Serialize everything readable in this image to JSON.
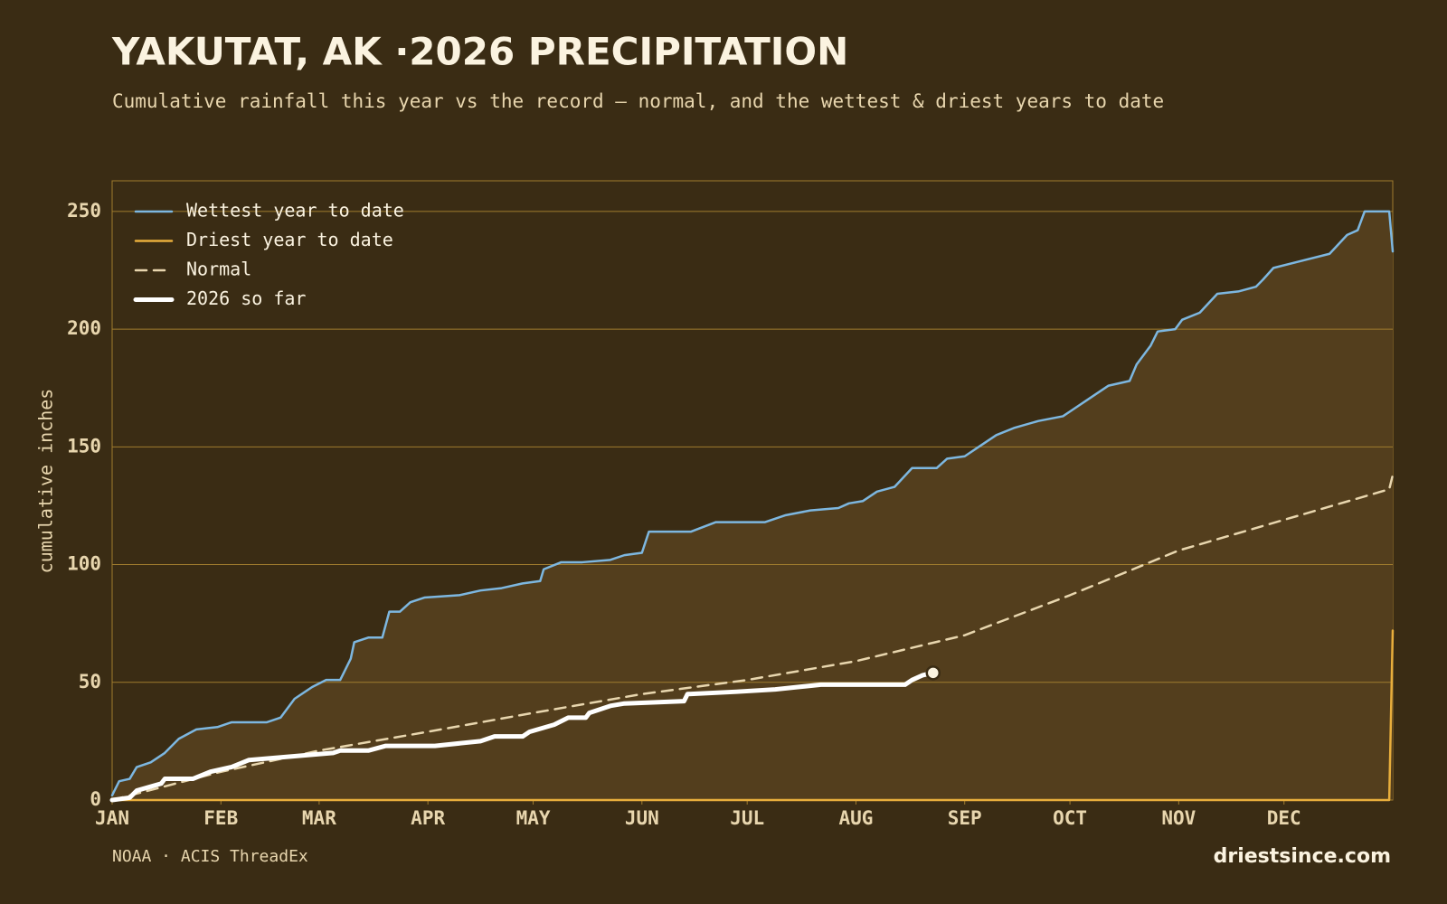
{
  "chart_data": {
    "type": "line",
    "title": "YAKUTAT, AK ·2026 PRECIPITATION",
    "subtitle": "Cumulative rainfall this year vs the record — normal, and the wettest & driest years to date",
    "y_label": "cumulative inches",
    "source": "NOAA · ACIS ThreadEx",
    "brand": "driestsince.com",
    "xlim": [
      0,
      365
    ],
    "ylim": [
      0,
      263
    ],
    "xticks": [
      {
        "value": 0,
        "label": "JAN"
      },
      {
        "value": 31,
        "label": "FEB"
      },
      {
        "value": 59,
        "label": "MAR"
      },
      {
        "value": 90,
        "label": "APR"
      },
      {
        "value": 120,
        "label": "MAY"
      },
      {
        "value": 151,
        "label": "JUN"
      },
      {
        "value": 181,
        "label": "JUL"
      },
      {
        "value": 212,
        "label": "AUG"
      },
      {
        "value": 243,
        "label": "SEP"
      },
      {
        "value": 273,
        "label": "OCT"
      },
      {
        "value": 304,
        "label": "NOV"
      },
      {
        "value": 334,
        "label": "DEC"
      }
    ],
    "yticks": [
      0,
      50,
      100,
      150,
      200,
      250
    ],
    "grid": true,
    "legend": "upper left",
    "series": [
      {
        "name": "Wettest year to date",
        "color": "#7db7e0",
        "width": 2.5,
        "dashed": false,
        "fill": "#533e1d",
        "x": [
          0,
          2,
          5,
          7,
          11,
          15,
          19,
          24,
          30,
          34,
          44,
          48,
          52,
          57,
          61,
          65,
          68,
          69,
          73,
          77,
          79,
          82,
          85,
          89,
          99,
          105,
          111,
          117,
          122,
          123,
          128,
          134,
          142,
          146,
          151,
          153,
          165,
          172,
          186,
          192,
          199,
          207,
          210,
          214,
          218,
          223,
          228,
          235,
          238,
          243,
          247,
          252,
          257,
          264,
          271,
          274,
          278,
          284,
          290,
          292,
          296,
          298,
          303,
          305,
          310,
          315,
          321,
          326,
          328,
          331,
          339,
          347,
          352,
          355,
          357,
          364,
          365
        ],
        "values": [
          2,
          8,
          9,
          14,
          16,
          20,
          26,
          30,
          31,
          33,
          33,
          35,
          43,
          48,
          51,
          51,
          60,
          67,
          69,
          69,
          80,
          80,
          84,
          86,
          87,
          89,
          90,
          92,
          93,
          98,
          101,
          101,
          102,
          104,
          105,
          114,
          114,
          118,
          118,
          121,
          123,
          124,
          126,
          127,
          131,
          133,
          141,
          141,
          145,
          146,
          150,
          155,
          158,
          161,
          163,
          166,
          170,
          176,
          178,
          185,
          193,
          199,
          200,
          204,
          207,
          215,
          216,
          218,
          221,
          226,
          229,
          232,
          240,
          242,
          250,
          250,
          233
        ]
      },
      {
        "name": "Driest year to date",
        "color": "#e8ae3c",
        "width": 2.5,
        "dashed": false,
        "x": [
          0,
          364,
          365
        ],
        "values": [
          0,
          0,
          72
        ]
      },
      {
        "name": "Normal",
        "color": "#e8d6ae",
        "width": 2.5,
        "dashed": true,
        "x": [
          0,
          31,
          59,
          90,
          120,
          151,
          181,
          212,
          243,
          273,
          304,
          334,
          364,
          365
        ],
        "values": [
          0,
          12,
          21,
          29,
          37,
          45,
          51,
          59,
          70,
          87,
          106,
          119,
          132,
          138
        ]
      },
      {
        "name": "2026 so far",
        "color": "#ffffff",
        "width": 5,
        "dashed": false,
        "end_marker": true,
        "x": [
          0,
          5,
          7,
          14,
          15,
          23,
          28,
          34,
          39,
          47,
          55,
          63,
          65,
          73,
          78,
          92,
          105,
          109,
          117,
          119,
          126,
          130,
          135,
          136,
          142,
          146,
          163,
          164,
          178,
          189,
          202,
          226,
          228,
          231,
          234
        ],
        "values": [
          0,
          1,
          4,
          7,
          9,
          9,
          12,
          14,
          17,
          18,
          19,
          20,
          21,
          21,
          23,
          23,
          25,
          27,
          27,
          29,
          32,
          35,
          35,
          37,
          40,
          41,
          42,
          45,
          46,
          47,
          49,
          49,
          51,
          53,
          54
        ]
      }
    ]
  }
}
